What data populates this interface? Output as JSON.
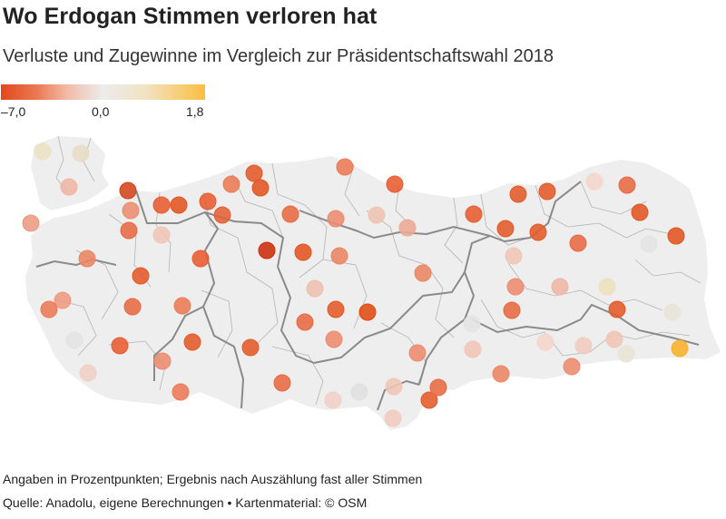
{
  "title": "Wo Erdogan Stimmen verloren hat",
  "subtitle": "Verluste und Zugewinne im Vergleich zur Präsidentschaftswahl 2018",
  "legend": {
    "min_label": "–7,0",
    "mid_label": "0,0",
    "max_label": "1,8",
    "colors": {
      "min": "#e2481a",
      "mid": "#ececec",
      "max": "#fbbd3d"
    }
  },
  "note": "Angaben in Prozentpunkten; Ergebnis nach Auszählung fast aller Stimmen",
  "source": "Quelle: Anadolu, eigene Berechnungen • Kartenmaterial: © OSM",
  "map_style": {
    "land_fill": "#eeeeee",
    "province_border": "#b4b4b4",
    "region_border": "#8a8a8a"
  }
}
